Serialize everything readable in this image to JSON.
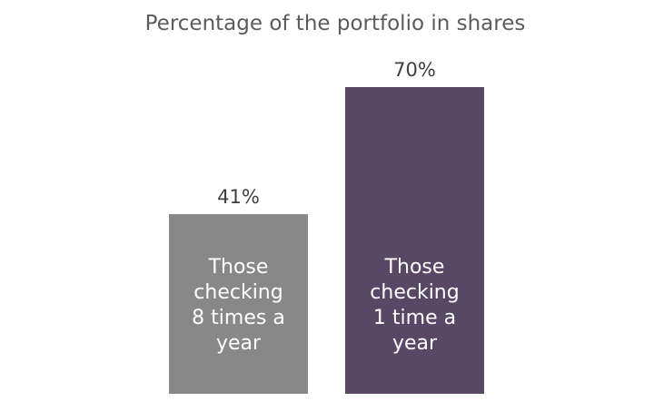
{
  "chart_data": {
    "type": "bar",
    "title": "Percentage of the portfolio in shares",
    "xlabel": "",
    "ylabel": "",
    "categories": [
      "Those checking 8 times a year",
      "Those checking 1 time a year"
    ],
    "category_lines": [
      [
        "Those",
        "checking",
        "8 times a",
        "year"
      ],
      [
        "Those",
        "checking",
        "1 time a",
        "year"
      ]
    ],
    "values": [
      41,
      70
    ],
    "value_labels": [
      "41%",
      "70%"
    ],
    "colors": [
      "#878887",
      "#594766"
    ],
    "ylim": [
      0,
      70
    ],
    "grid": false,
    "legend": "none"
  }
}
